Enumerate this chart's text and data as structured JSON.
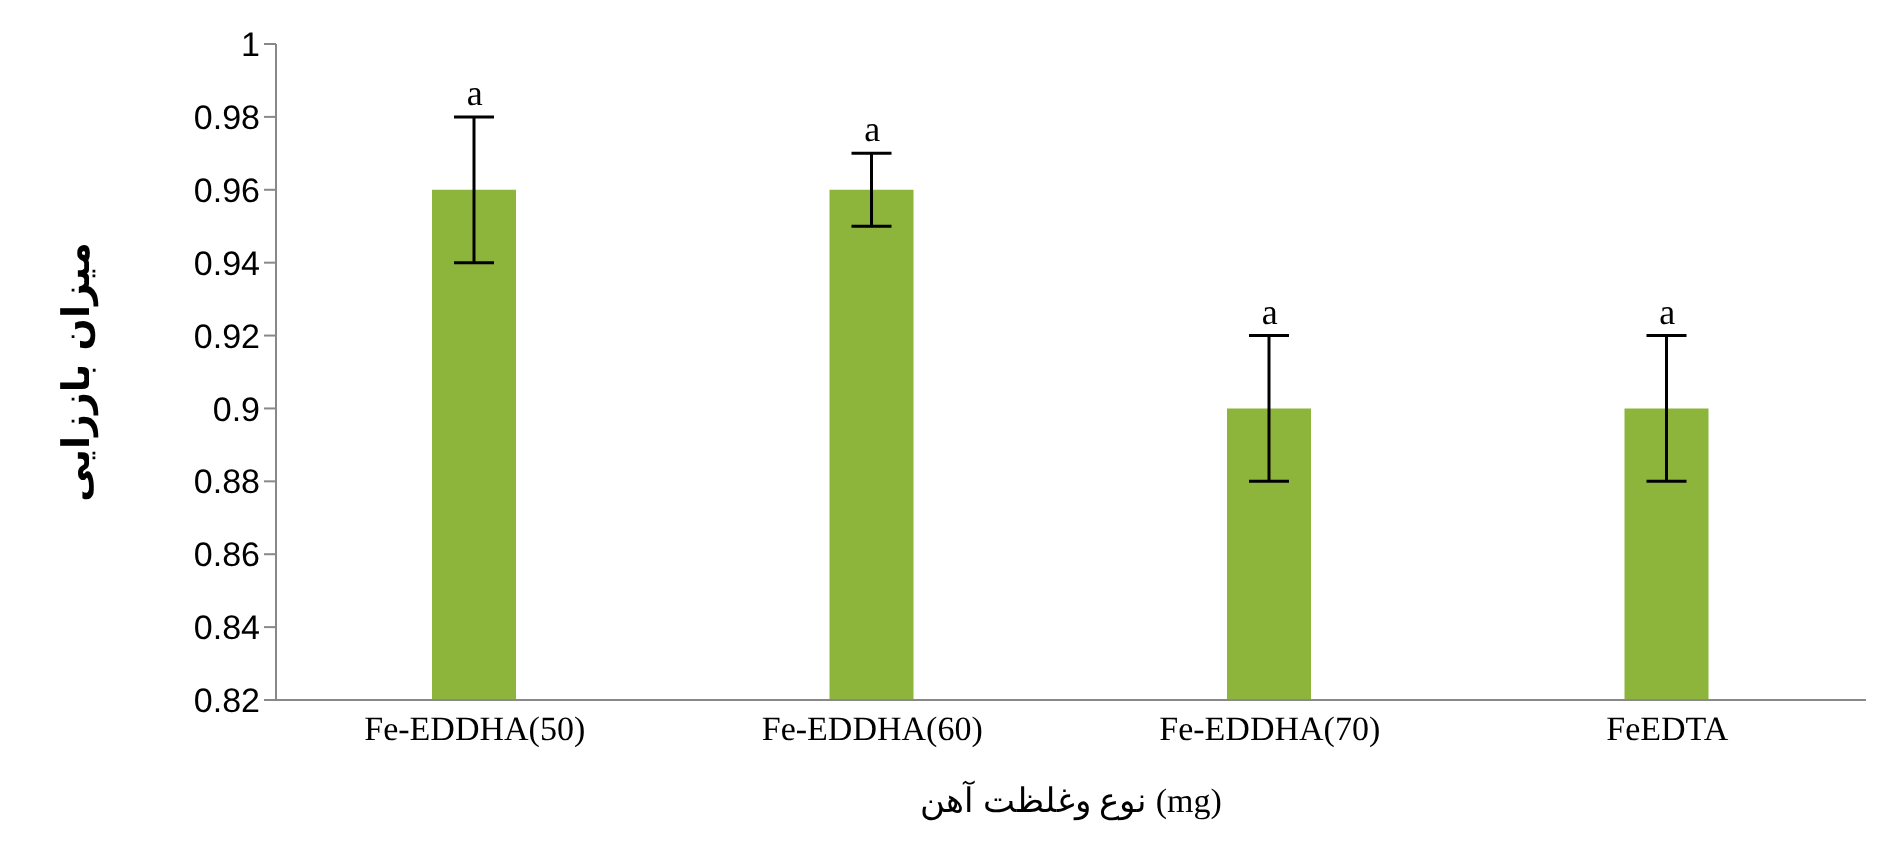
{
  "chart_data": {
    "type": "bar",
    "categories": [
      "Fe-EDDHA(50)",
      "Fe-EDDHA(60)",
      "Fe-EDDHA(70)",
      "FeEDTA"
    ],
    "values": [
      0.96,
      0.96,
      0.9,
      0.9
    ],
    "errors": [
      0.02,
      0.01,
      0.02,
      0.02
    ],
    "color": "#8db53c",
    "xlabel": "نوع وغلظت آهن (mg)",
    "ylabel": "میزان باززایی",
    "ylim": [
      0.82,
      1
    ],
    "yticks": [
      0.82,
      0.84,
      0.86,
      0.88,
      0.9,
      0.92,
      0.94,
      0.96,
      0.98,
      1
    ],
    "annotations": [
      {
        "text": "a",
        "x": "Fe-EDDHA(50)",
        "y": 0.98
      },
      {
        "text": "a",
        "x": "Fe-EDDHA(60)",
        "y": 0.97
      },
      {
        "text": "a",
        "x": "Fe-EDDHA(70)",
        "y": 0.92
      },
      {
        "text": "a",
        "x": "FeEDTA",
        "y": 0.92
      }
    ],
    "grid": false,
    "legend": false
  }
}
